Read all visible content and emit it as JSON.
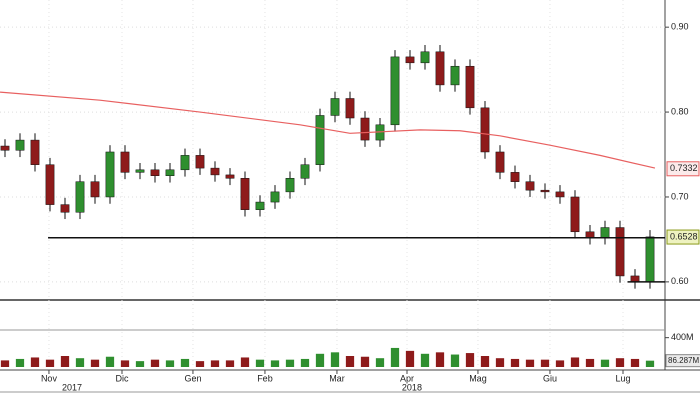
{
  "chart_data": {
    "type": "candlestick",
    "categories": [
      null,
      null,
      null,
      null,
      null,
      null,
      null,
      null,
      null,
      null,
      null,
      null,
      null,
      null,
      null,
      null,
      null,
      null,
      null,
      null,
      null,
      null,
      null,
      null,
      null,
      null,
      null,
      null,
      null,
      null,
      null,
      null,
      null,
      null,
      null,
      null,
      null,
      null,
      null,
      null,
      null,
      null,
      null,
      null
    ],
    "open": [
      0.76,
      0.755,
      0.767,
      0.738,
      0.691,
      0.682,
      0.718,
      0.7,
      0.753,
      0.729,
      0.732,
      0.725,
      0.732,
      0.749,
      0.734,
      0.726,
      0.722,
      0.685,
      0.694,
      0.706,
      0.722,
      0.738,
      0.796,
      0.816,
      0.793,
      0.767,
      0.785,
      0.865,
      0.858,
      0.871,
      0.832,
      0.854,
      0.805,
      0.753,
      0.729,
      0.718,
      0.708,
      0.706,
      0.7,
      0.659,
      0.652,
      0.664,
      0.607,
      0.6
    ],
    "high": [
      0.768,
      0.775,
      0.775,
      0.746,
      0.699,
      0.726,
      0.726,
      0.761,
      0.761,
      0.74,
      0.74,
      0.74,
      0.757,
      0.757,
      0.742,
      0.734,
      0.73,
      0.702,
      0.714,
      0.73,
      0.746,
      0.804,
      0.824,
      0.824,
      0.801,
      0.793,
      0.873,
      0.873,
      0.879,
      0.879,
      0.862,
      0.862,
      0.813,
      0.761,
      0.737,
      0.726,
      0.716,
      0.714,
      0.708,
      0.667,
      0.672,
      0.672,
      0.615,
      0.661
    ],
    "low": [
      0.747,
      0.747,
      0.73,
      0.683,
      0.674,
      0.674,
      0.692,
      0.692,
      0.721,
      0.721,
      0.717,
      0.717,
      0.724,
      0.726,
      0.718,
      0.714,
      0.677,
      0.677,
      0.686,
      0.698,
      0.714,
      0.73,
      0.788,
      0.785,
      0.759,
      0.759,
      0.777,
      0.85,
      0.85,
      0.824,
      0.824,
      0.797,
      0.745,
      0.721,
      0.71,
      0.7,
      0.698,
      0.692,
      0.651,
      0.644,
      0.644,
      0.599,
      0.592,
      0.592
    ],
    "close": [
      0.755,
      0.767,
      0.738,
      0.691,
      0.682,
      0.718,
      0.7,
      0.753,
      0.729,
      0.732,
      0.725,
      0.732,
      0.749,
      0.734,
      0.726,
      0.722,
      0.685,
      0.694,
      0.706,
      0.722,
      0.738,
      0.796,
      0.816,
      0.793,
      0.767,
      0.785,
      0.865,
      0.858,
      0.871,
      0.832,
      0.854,
      0.805,
      0.753,
      0.729,
      0.718,
      0.708,
      0.706,
      0.7,
      0.659,
      0.652,
      0.664,
      0.607,
      0.6,
      0.653
    ],
    "up_color": "#2f8f2f",
    "down_color": "#8e1b1b",
    "ylim": [
      0.581,
      0.932
    ],
    "yticks": [
      {
        "value": 0.6,
        "label": "0.60"
      },
      {
        "value": 0.7,
        "label": "0.70"
      },
      {
        "value": 0.8,
        "label": "0.80"
      },
      {
        "value": 0.9,
        "label": "0.90"
      }
    ],
    "xlim": [
      -0.333,
      44
    ],
    "xticks": [
      {
        "value": 2.93,
        "label": "Nov"
      },
      {
        "value": 7.8,
        "label": "Dic"
      },
      {
        "value": 12.53,
        "label": "Gen"
      },
      {
        "value": 17.33,
        "label": "Feb"
      },
      {
        "value": 22.13,
        "label": "Mar"
      },
      {
        "value": 26.8,
        "label": "Apr"
      },
      {
        "value": 31.53,
        "label": "Mag"
      },
      {
        "value": 36.33,
        "label": "Giu"
      },
      {
        "value": 41.2,
        "label": "Lug"
      }
    ],
    "years": [
      {
        "value": 4.47,
        "label": "2017"
      },
      {
        "value": 27.13,
        "label": "2018"
      }
    ],
    "grid": true,
    "moving_average": {
      "color": "#e86060",
      "x": [
        -0.33,
        6.33,
        13,
        19.67,
        23,
        27.67,
        30.33,
        33,
        36.33,
        39.67,
        43.33
      ],
      "values": [
        0.8235,
        0.814,
        0.8,
        0.785,
        0.775,
        0.779,
        0.778,
        0.772,
        0.761,
        0.749,
        0.734
      ]
    },
    "lines": [
      {
        "value": 0.652,
        "x": [
          2.87,
          44
        ]
      },
      {
        "value": 0.6,
        "x": [
          41.5,
          44
        ]
      }
    ],
    "price_labels": [
      {
        "value": 0.7332,
        "color": "#e86060",
        "fill": "#fbeaea"
      },
      {
        "value": 0.6528,
        "color": "#8a9a1a",
        "fill": "#eef2c0"
      }
    ],
    "volume": {
      "values": [
        90,
        110,
        130,
        100,
        150,
        120,
        100,
        140,
        90,
        80,
        100,
        90,
        110,
        80,
        90,
        90,
        130,
        100,
        90,
        100,
        110,
        180,
        200,
        150,
        140,
        120,
        260,
        220,
        180,
        200,
        170,
        190,
        150,
        120,
        110,
        100,
        100,
        90,
        130,
        110,
        100,
        120,
        110,
        86.287
      ],
      "ylim": [
        0,
        450
      ],
      "yticks": [
        {
          "value": 400,
          "label": "400M"
        }
      ],
      "last_label": "86.287M"
    }
  }
}
